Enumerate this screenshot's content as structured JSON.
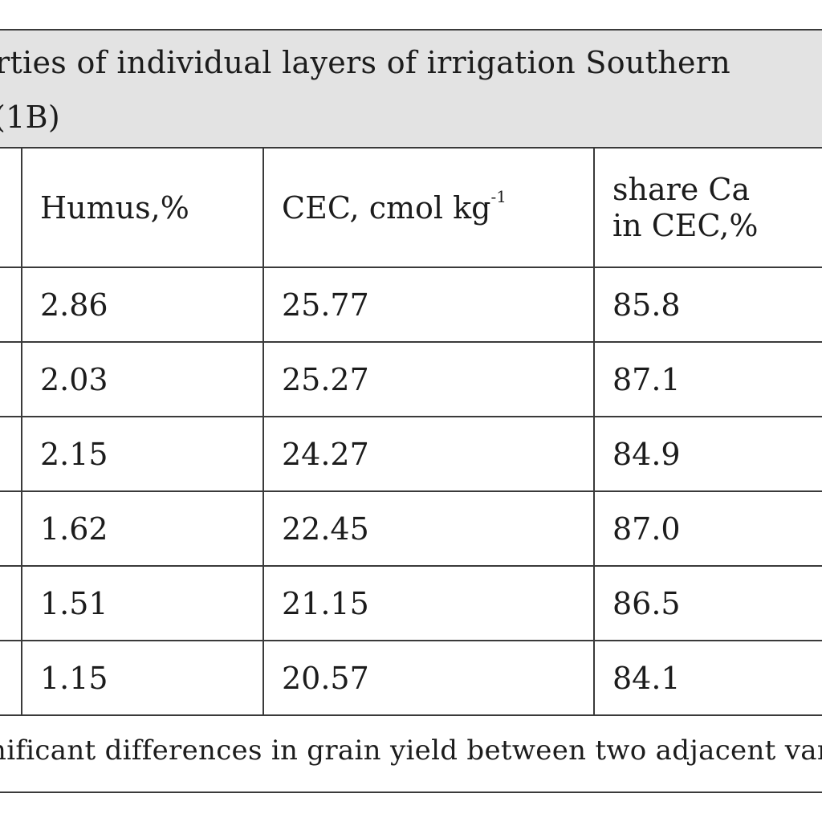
{
  "title": {
    "line1": "rties of individual layers of irrigation Southern",
    "line2": "(1B)"
  },
  "table": {
    "headers": {
      "humus": "Humus,%",
      "cec_text": "CEC, cmol kg",
      "cec_sup": "-1",
      "share_line1": "share Ca",
      "share_line2": "in CEC,%"
    },
    "rows": [
      {
        "humus": "2.86",
        "cec": "25.77",
        "share_ca": "85.8"
      },
      {
        "humus": "2.03",
        "cec": "25.27",
        "share_ca": "87.1"
      },
      {
        "humus": "2.15",
        "cec": "24.27",
        "share_ca": "84.9"
      },
      {
        "humus": "1.62",
        "cec": "22.45",
        "share_ca": "87.0"
      },
      {
        "humus": "1.51",
        "cec": "21.15",
        "share_ca": "86.5"
      },
      {
        "humus": "1.15",
        "cec": "20.57",
        "share_ca": "84.1"
      }
    ]
  },
  "footnote": "nificant differences in grain yield between two adjacent var"
}
